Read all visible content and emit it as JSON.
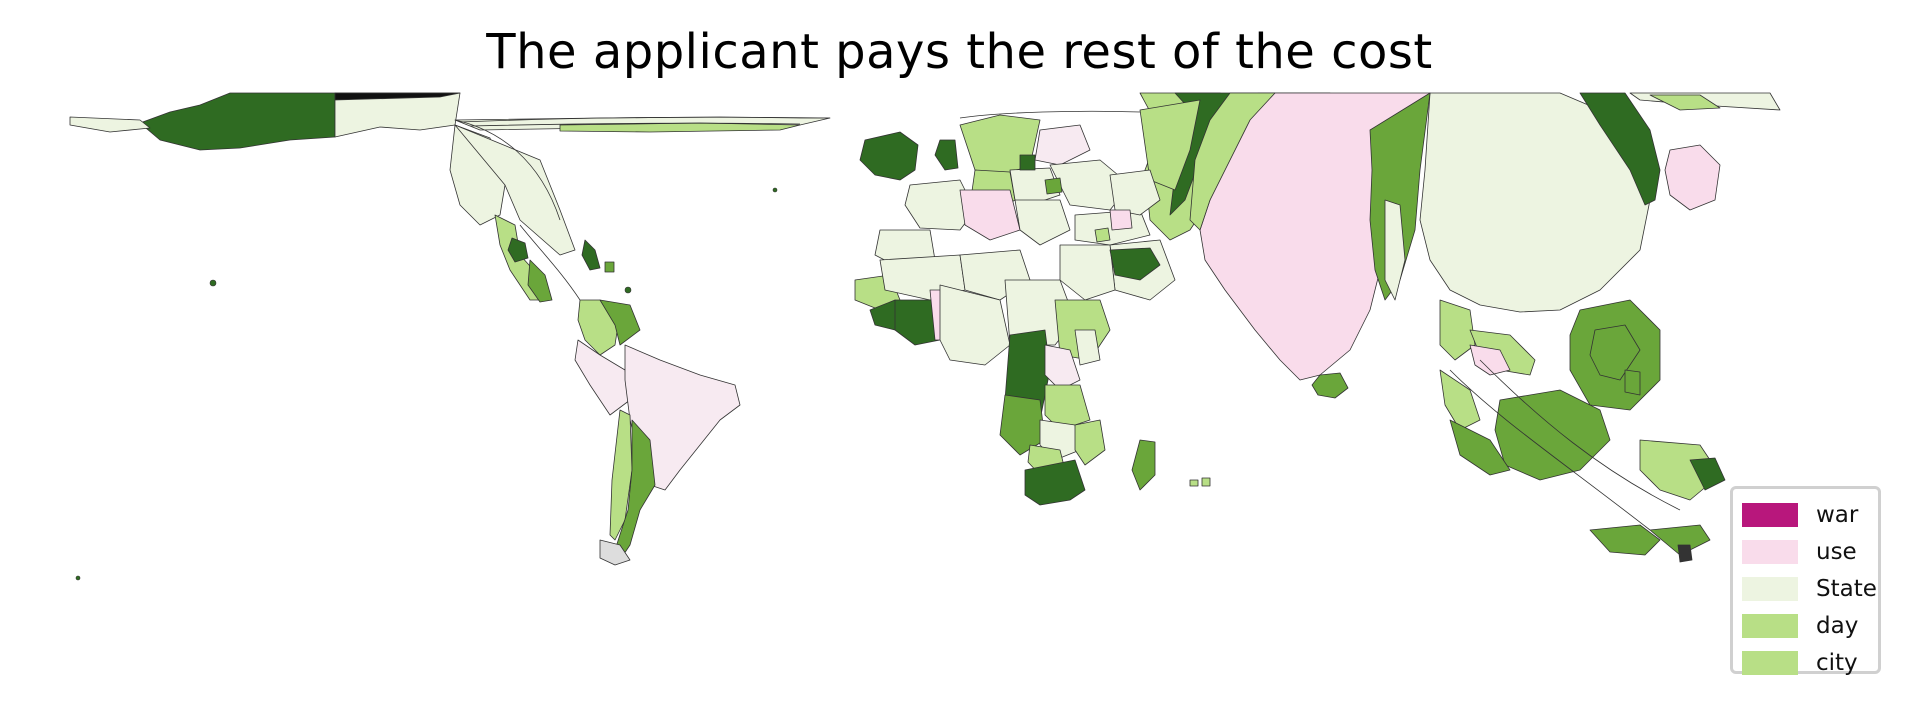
{
  "title": "The applicant pays the rest of the cost",
  "colors": {
    "dark_green": "#2f6b22",
    "mid_green": "#6aa63a",
    "light_green": "#b8df86",
    "pale_green": "#edf4e1",
    "pink": "#f9dceb",
    "pale_pink": "#f7eaf1",
    "magenta": "#b8177c",
    "outline": "#333333"
  },
  "legend": {
    "items": [
      {
        "label": "war",
        "color": "#b8177c"
      },
      {
        "label": "use",
        "color": "#f9dceb"
      },
      {
        "label": "State",
        "color": "#edf4e1"
      },
      {
        "label": "day",
        "color": "#b8df86"
      },
      {
        "label": "city",
        "color": "#b8df86"
      }
    ]
  }
}
